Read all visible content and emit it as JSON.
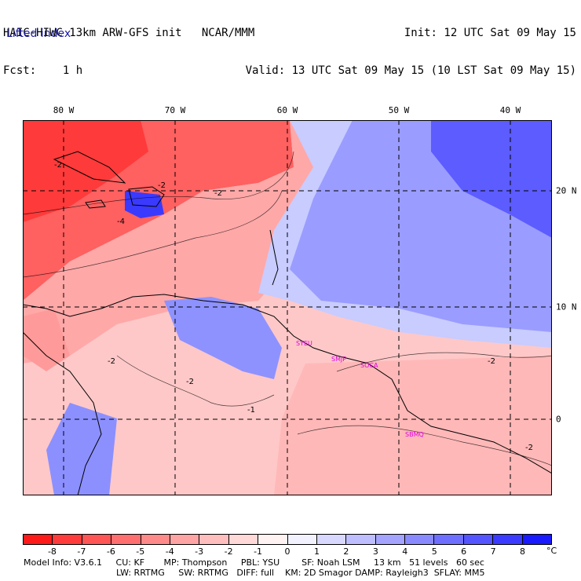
{
  "header": {
    "model_line": "HAIC-HIWC 13km ARW-GFS init   NCAR/MMM",
    "fcst_line": "Fcst:    1 h",
    "init_line": "Init: 12 UTC Sat 09 May 15",
    "valid_line": "Valid: 13 UTC Sat 09 May 15 (10 LST Sat 09 May 15)"
  },
  "field_name": "Lifted index",
  "map": {
    "lon_labels": [
      "80 W",
      "70 W",
      "60 W",
      "50 W",
      "40 W"
    ],
    "lat_labels": [
      "20 N",
      "10 N",
      "0"
    ],
    "city_labels": [
      "SYEU",
      "SMJP",
      "SOCA",
      "SBMQ"
    ],
    "contour_labels": [
      "-2",
      "-2",
      "-4",
      "-2",
      "-2",
      "-2",
      "-1",
      "-2",
      "-2"
    ]
  },
  "colorbar": {
    "labels": [
      "-8",
      "-7",
      "-6",
      "-5",
      "-4",
      "-3",
      "-2",
      "-1",
      "0",
      "1",
      "2",
      "3",
      "4",
      "5",
      "6",
      "7",
      "8"
    ],
    "unit": "°C",
    "colors": [
      "#ff1a1a",
      "#ff3b3b",
      "#ff5555",
      "#ff6f6f",
      "#ff8a8a",
      "#ffa4a4",
      "#ffbebe",
      "#ffd8d8",
      "#fff2f2",
      "#f2f2ff",
      "#d8d8ff",
      "#bebeff",
      "#a4a4ff",
      "#8a8aff",
      "#6f6fff",
      "#5555ff",
      "#3b3bff",
      "#1a1aff"
    ]
  },
  "model_info": {
    "line1": "Model Info: V3.6.1     CU: KF       MP: Thompson     PBL: YSU        SF: Noah LSM     13 km   51 levels   60 sec",
    "line2": "LW: RRTMG     SW: RRTMG   DIFF: full    KM: 2D Smagor DAMP: Rayleigh3  SFLAY: MM5"
  }
}
